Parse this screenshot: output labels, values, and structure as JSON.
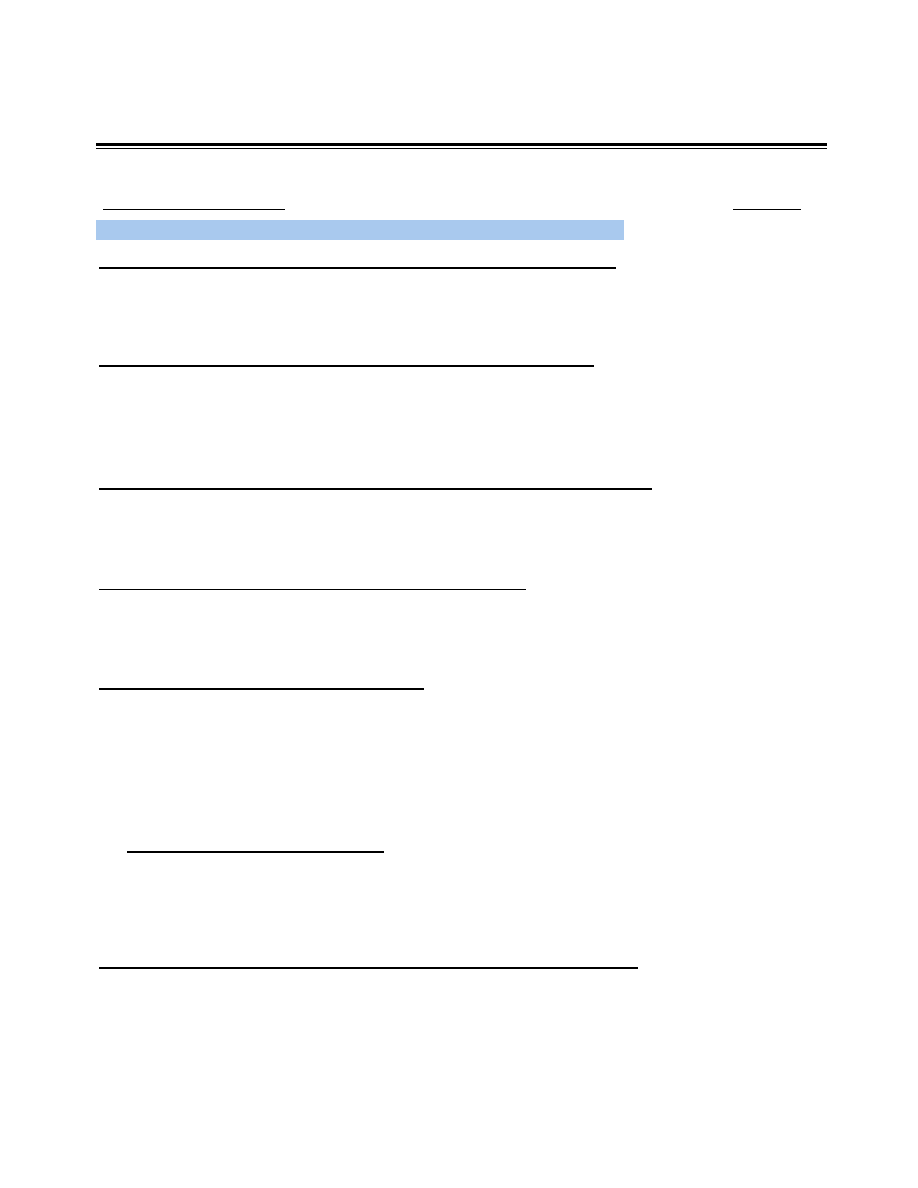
{
  "document": {
    "colors": {
      "highlight": "#a9c9ee",
      "rule": "#000000",
      "background": "#ffffff"
    },
    "header": {
      "rule_style": "double"
    },
    "fields": [
      {
        "name": "field-top-left",
        "value": ""
      },
      {
        "name": "field-top-right",
        "value": ""
      },
      {
        "name": "field-line-1",
        "value": ""
      },
      {
        "name": "field-line-2",
        "value": ""
      },
      {
        "name": "field-line-3",
        "value": ""
      },
      {
        "name": "field-line-4",
        "value": ""
      },
      {
        "name": "field-line-5",
        "value": ""
      },
      {
        "name": "field-line-6",
        "value": ""
      },
      {
        "name": "field-line-7",
        "value": ""
      }
    ]
  }
}
